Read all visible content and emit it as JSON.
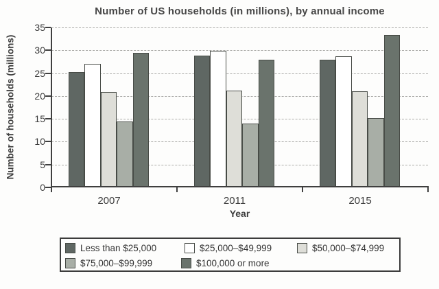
{
  "chart_data": {
    "type": "bar",
    "title": "Number of US households (in millions), by annual income",
    "xlabel": "Year",
    "ylabel": "Number of households (millions)",
    "ylim": [
      0,
      35
    ],
    "yticks": [
      0,
      5,
      10,
      15,
      20,
      25,
      30,
      35
    ],
    "grid": true,
    "legend_position": "bottom",
    "categories": [
      "2007",
      "2011",
      "2015"
    ],
    "series": [
      {
        "name": "Less than $25,000",
        "color": "#5f6763",
        "values": [
          25.3,
          28.9,
          28.0
        ]
      },
      {
        "name": "$25,000–$49,999",
        "color": "#ffffff",
        "values": [
          27.0,
          29.9,
          28.7
        ]
      },
      {
        "name": "$50,000–$74,999",
        "color": "#deded8",
        "values": [
          20.9,
          21.2,
          21.1
        ]
      },
      {
        "name": "$75,000–$99,999",
        "color": "#a8aea6",
        "values": [
          14.5,
          14.0,
          15.2
        ]
      },
      {
        "name": "$100,000 or more",
        "color": "#6a736c",
        "values": [
          29.5,
          27.9,
          33.3
        ]
      }
    ]
  }
}
